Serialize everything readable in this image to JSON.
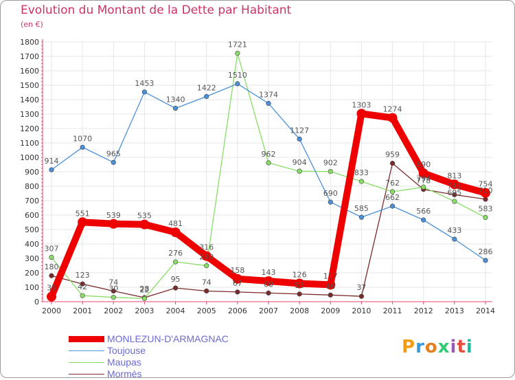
{
  "title": "Evolution du Montant de la Dette par Habitant",
  "unit_label": "(en €)",
  "logo_text": "Proxiti",
  "colors": {
    "title": "#cc3366",
    "axis": "#e2446d",
    "grid": "#e6e6e6",
    "legend_text": "#6b6bd6",
    "label": "#555555"
  },
  "chart_data": {
    "type": "line",
    "categories": [
      "2000",
      "2001",
      "2002",
      "2003",
      "2004",
      "2005",
      "2006",
      "2007",
      "2008",
      "2009",
      "2010",
      "2011",
      "2012",
      "2013",
      "2014"
    ],
    "ylim": [
      0,
      1800
    ],
    "yticks": [
      0,
      100,
      200,
      300,
      400,
      500,
      600,
      700,
      800,
      900,
      1000,
      1100,
      1200,
      1300,
      1400,
      1500,
      1600,
      1700,
      1800
    ],
    "grid": true,
    "legend_position": "bottom-left",
    "series": [
      {
        "name": "MONLEZUN-D'ARMAGNAC",
        "color": "#ee0000",
        "values": [
          35,
          551,
          539,
          535,
          481,
          316,
          158,
          143,
          126,
          117,
          1303,
          1274,
          890,
          813,
          754
        ],
        "labels": [
          "35",
          "551",
          "539",
          "535",
          "481",
          "316",
          "158",
          "143",
          "126",
          "117",
          "1303",
          "1274",
          "890",
          "813",
          "754"
        ]
      },
      {
        "name": "Toujouse",
        "color": "#4a90d9",
        "values": [
          914,
          1070,
          965,
          1453,
          1340,
          1422,
          1510,
          1374,
          1127,
          690,
          585,
          662,
          566,
          433,
          286
        ],
        "labels": [
          "914",
          "1070",
          "965",
          "1453",
          "1340",
          "1422",
          "1510",
          "1374",
          "1127",
          "690",
          "585",
          "662",
          "566",
          "433",
          "286"
        ]
      },
      {
        "name": "Maupas",
        "color": "#88dd66",
        "values": [
          307,
          42,
          30,
          22,
          276,
          249,
          1721,
          962,
          904,
          902,
          833,
          762,
          794,
          695,
          583
        ],
        "labels": [
          "307",
          "42",
          "30",
          "22",
          "276",
          "249",
          "1721",
          "962",
          "904",
          "902",
          "833",
          "762",
          "794",
          "695",
          "583"
        ]
      },
      {
        "name": "Mormès",
        "color": "#7a2a2a",
        "values": [
          180,
          123,
          74,
          28,
          95,
          74,
          67,
          60,
          53,
          46,
          37,
          959,
          778,
          741,
          710
        ],
        "labels": [
          "180",
          "123",
          "74",
          "28",
          "95",
          "74",
          "67",
          "60",
          "53",
          "46",
          "37",
          "959",
          "778",
          "741",
          "710"
        ]
      }
    ]
  }
}
